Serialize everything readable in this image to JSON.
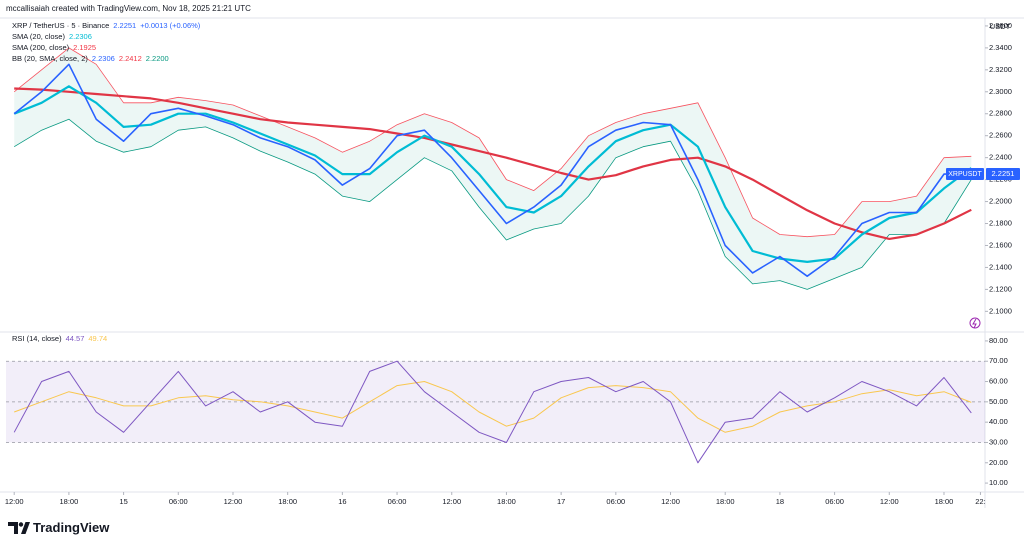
{
  "header": "mccallisaiah created with TradingView.com, Nov 18, 2025 21:21 UTC",
  "logo": "TradingView",
  "chart_data": [
    {
      "type": "line",
      "title": "XRP / TetherUS · 5 · Binance",
      "title_values": [
        {
          "text": "2.2251",
          "color": "#2962ff"
        },
        {
          "text": "+0.0013 (+0.06%)",
          "color": "#2962ff"
        }
      ],
      "legend": [
        {
          "name": "SMA (20, close)",
          "values": [
            {
              "text": "2.2306",
              "color": "#00bcd4"
            }
          ]
        },
        {
          "name": "SMA (200, close)",
          "values": [
            {
              "text": "2.1925",
              "color": "#f23645"
            }
          ]
        },
        {
          "name": "BB (20, SMA, close, 2)",
          "values": [
            {
              "text": "2.2306",
              "color": "#2962ff"
            },
            {
              "text": "2.2412",
              "color": "#f23645"
            },
            {
              "text": "2.2200",
              "color": "#089981"
            }
          ]
        }
      ],
      "y_axis_label": "USDT",
      "price_tag": {
        "name": "XRPUSDT",
        "value": "2.2251",
        "color": "#2962ff"
      },
      "x": [
        0,
        3,
        6,
        9,
        12,
        15,
        18,
        21,
        24,
        27,
        30,
        33,
        36,
        39,
        42,
        45,
        48,
        51,
        54,
        57,
        60,
        63,
        66,
        69,
        72,
        75,
        78,
        81,
        84,
        87,
        90,
        93,
        96,
        99,
        102,
        105
      ],
      "xlim": [
        -0.9,
        106.5
      ],
      "ylim": [
        2.083,
        2.3654
      ],
      "yticks": [
        {
          "value": 2.1,
          "label": "2.1000"
        },
        {
          "value": 2.12,
          "label": "2.1200"
        },
        {
          "value": 2.14,
          "label": "2.1400"
        },
        {
          "value": 2.16,
          "label": "2.1600"
        },
        {
          "value": 2.18,
          "label": "2.1800"
        },
        {
          "value": 2.2,
          "label": "2.2000"
        },
        {
          "value": 2.22,
          "label": "2.2200"
        },
        {
          "value": 2.24,
          "label": "2.2400"
        },
        {
          "value": 2.26,
          "label": "2.2600"
        },
        {
          "value": 2.28,
          "label": "2.2800"
        },
        {
          "value": 2.3,
          "label": "2.3000"
        },
        {
          "value": 2.32,
          "label": "2.3200"
        },
        {
          "value": 2.34,
          "label": "2.3400"
        },
        {
          "value": 2.36,
          "label": "2.3600"
        }
      ],
      "grid": false,
      "band_fill": "rgba(8,153,129,0.08)",
      "series": [
        {
          "color": "#2962ff",
          "width": 1.6,
          "values": [
            2.28,
            2.3,
            2.325,
            2.275,
            2.255,
            2.28,
            2.285,
            2.278,
            2.27,
            2.258,
            2.25,
            2.238,
            2.215,
            2.23,
            2.26,
            2.265,
            2.24,
            2.21,
            2.18,
            2.195,
            2.215,
            2.25,
            2.265,
            2.272,
            2.27,
            2.22,
            2.16,
            2.135,
            2.15,
            2.132,
            2.15,
            2.18,
            2.19,
            2.19,
            2.225,
            2.2251
          ]
        },
        {
          "color": "#00bcd4",
          "width": 2.2,
          "values": [
            2.28,
            2.29,
            2.305,
            2.29,
            2.268,
            2.27,
            2.28,
            2.28,
            2.272,
            2.262,
            2.252,
            2.242,
            2.225,
            2.225,
            2.245,
            2.26,
            2.25,
            2.225,
            2.195,
            2.19,
            2.205,
            2.232,
            2.255,
            2.265,
            2.27,
            2.25,
            2.195,
            2.155,
            2.148,
            2.145,
            2.148,
            2.17,
            2.185,
            2.19,
            2.212,
            2.2306
          ]
        },
        {
          "color": "#e03545",
          "width": 2.2,
          "values": [
            2.303,
            2.302,
            2.3,
            2.298,
            2.296,
            2.294,
            2.29,
            2.285,
            2.28,
            2.275,
            2.272,
            2.27,
            2.268,
            2.266,
            2.262,
            2.258,
            2.252,
            2.246,
            2.24,
            2.233,
            2.226,
            2.22,
            2.224,
            2.232,
            2.238,
            2.24,
            2.232,
            2.22,
            2.206,
            2.192,
            2.18,
            2.172,
            2.166,
            2.17,
            2.18,
            2.1925
          ]
        },
        {
          "color": "#f7525f",
          "width": 0.8,
          "values": [
            2.3,
            2.32,
            2.34,
            2.325,
            2.29,
            2.29,
            2.295,
            2.292,
            2.288,
            2.278,
            2.268,
            2.258,
            2.245,
            2.255,
            2.27,
            2.28,
            2.272,
            2.258,
            2.22,
            2.21,
            2.23,
            2.26,
            2.272,
            2.28,
            2.285,
            2.29,
            2.24,
            2.185,
            2.17,
            2.168,
            2.17,
            2.2,
            2.2,
            2.205,
            2.24,
            2.2412
          ]
        },
        {
          "color": "#089981",
          "width": 0.8,
          "values": [
            2.25,
            2.265,
            2.275,
            2.255,
            2.245,
            2.25,
            2.265,
            2.268,
            2.258,
            2.246,
            2.236,
            2.225,
            2.205,
            2.2,
            2.22,
            2.24,
            2.228,
            2.195,
            2.165,
            2.175,
            2.18,
            2.205,
            2.24,
            2.25,
            2.255,
            2.21,
            2.15,
            2.125,
            2.128,
            2.12,
            2.13,
            2.14,
            2.17,
            2.17,
            2.18,
            2.22
          ]
        }
      ]
    },
    {
      "type": "line",
      "legend": [
        {
          "name": "RSI (14, close)",
          "values": [
            {
              "text": "44.57",
              "color": "#7e57c2"
            },
            {
              "text": "49.74",
              "color": "#f9c74f"
            }
          ]
        }
      ],
      "x": [
        0,
        3,
        6,
        9,
        12,
        15,
        18,
        21,
        24,
        27,
        30,
        33,
        36,
        39,
        42,
        45,
        48,
        51,
        54,
        57,
        60,
        63,
        66,
        69,
        72,
        75,
        78,
        81,
        84,
        87,
        90,
        93,
        96,
        99,
        102,
        105
      ],
      "xlim": [
        -0.9,
        106.5
      ],
      "ylim": [
        6.1,
        83.9
      ],
      "yticks": [
        {
          "value": 10,
          "label": "10.00"
        },
        {
          "value": 20,
          "label": "20.00"
        },
        {
          "value": 30,
          "label": "30.00"
        },
        {
          "value": 40,
          "label": "40.00"
        },
        {
          "value": 50,
          "label": "50.00"
        },
        {
          "value": 60,
          "label": "60.00"
        },
        {
          "value": 70,
          "label": "70.00"
        },
        {
          "value": 80,
          "label": "80.00"
        }
      ],
      "xticks": [
        {
          "value": 0,
          "label": "12:00"
        },
        {
          "value": 6,
          "label": "18:00"
        },
        {
          "value": 12,
          "label": "15"
        },
        {
          "value": 18,
          "label": "06:00"
        },
        {
          "value": 24,
          "label": "12:00"
        },
        {
          "value": 30,
          "label": "18:00"
        },
        {
          "value": 36,
          "label": "16"
        },
        {
          "value": 42,
          "label": "06:00"
        },
        {
          "value": 48,
          "label": "12:00"
        },
        {
          "value": 54,
          "label": "18:00"
        },
        {
          "value": 60,
          "label": "17"
        },
        {
          "value": 66,
          "label": "06:00"
        },
        {
          "value": 72,
          "label": "12:00"
        },
        {
          "value": 78,
          "label": "18:00"
        },
        {
          "value": 84,
          "label": "18"
        },
        {
          "value": 90,
          "label": "06:00"
        },
        {
          "value": 96,
          "label": "12:00"
        },
        {
          "value": 102,
          "label": "18:00"
        },
        {
          "value": 106,
          "label": "22:"
        }
      ],
      "band": [
        30,
        70
      ],
      "band_color": "rgba(126,87,194,0.1)",
      "levels": [
        30,
        50,
        70
      ],
      "grid": false,
      "series": [
        {
          "color": "#7e57c2",
          "width": 1,
          "values": [
            35,
            60,
            65,
            45,
            35,
            50,
            65,
            48,
            55,
            45,
            50,
            40,
            38,
            65,
            70,
            55,
            45,
            35,
            30,
            55,
            60,
            62,
            55,
            60,
            50,
            20,
            40,
            42,
            55,
            45,
            52,
            60,
            55,
            48,
            62,
            44.57
          ]
        },
        {
          "color": "#f9c74f",
          "width": 1,
          "values": [
            45,
            50,
            55,
            52,
            48,
            48,
            52,
            53,
            51,
            50,
            48,
            45,
            42,
            50,
            58,
            60,
            55,
            45,
            38,
            42,
            52,
            57,
            58,
            57,
            55,
            42,
            35,
            38,
            45,
            48,
            50,
            54,
            56,
            53,
            55,
            49.74
          ]
        }
      ]
    }
  ]
}
